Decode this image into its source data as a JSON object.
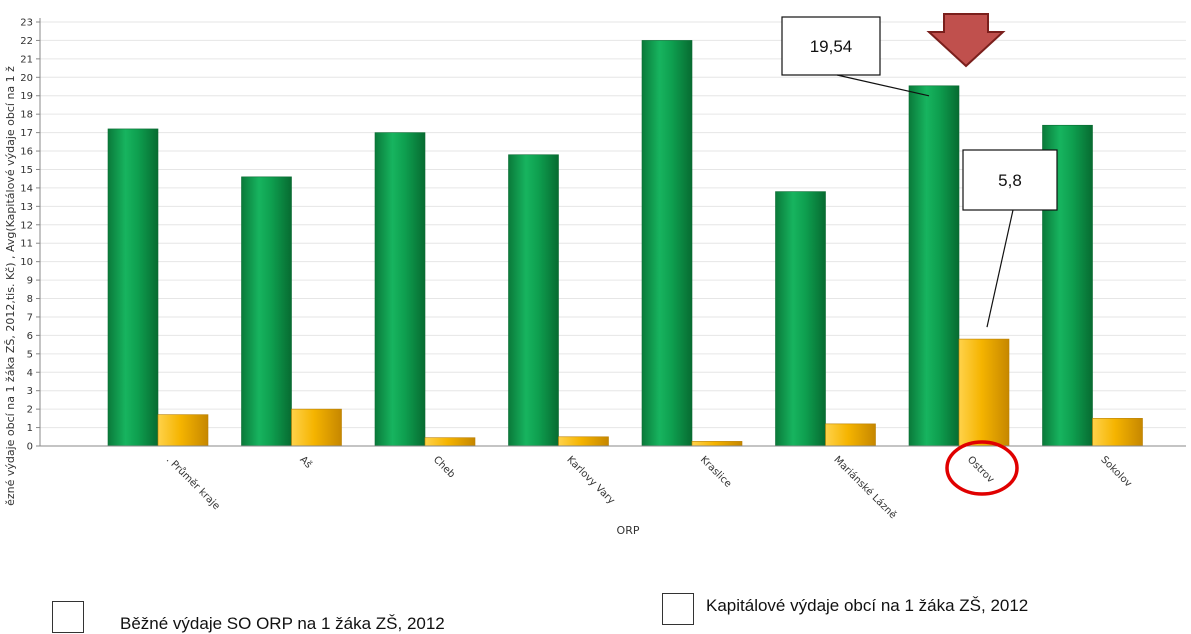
{
  "chart_data": {
    "type": "bar",
    "categories": [
      ". Průměr kraje",
      "Aš",
      "Cheb",
      "Karlovy Vary",
      "Kraslice",
      "Mariánské Lázně",
      "Ostrov",
      "Sokolov"
    ],
    "series": [
      {
        "name": "Běžné výdaje SO ORP na 1 žáka ZŠ, 2012",
        "color": "#0e9f4f",
        "values": [
          17.2,
          14.6,
          17.0,
          15.8,
          22.0,
          13.8,
          19.54,
          17.4
        ]
      },
      {
        "name": "Kapitálové výdaje obcí na 1 žáka ZŠ, 2012",
        "color": "#f5b400",
        "values": [
          1.7,
          2.0,
          0.45,
          0.5,
          0.25,
          1.2,
          5.8,
          1.5
        ]
      }
    ],
    "xlabel": "ORP",
    "ylabel": "ězné výdaje obcí na 1 žáka ZŠ, 2012,tis. Kč) , Avg(Kapitálové výdaje obcí na 1 ž",
    "ylim": [
      0,
      23
    ],
    "yticks": [
      0,
      1,
      2,
      3,
      4,
      5,
      6,
      7,
      8,
      9,
      10,
      11,
      12,
      13,
      14,
      15,
      16,
      17,
      18,
      19,
      20,
      21,
      22,
      23
    ],
    "grid": true,
    "legend_position": "bottom",
    "annotations": [
      {
        "text": "19,54",
        "target_category": "Ostrov",
        "target_series": 0
      },
      {
        "text": "5,8",
        "target_category": "Ostrov",
        "target_series": 1
      }
    ],
    "highlight": {
      "category": "Ostrov",
      "marker": "red circle around label, red arrow above bar",
      "arrow_color": "#c0504d"
    }
  }
}
